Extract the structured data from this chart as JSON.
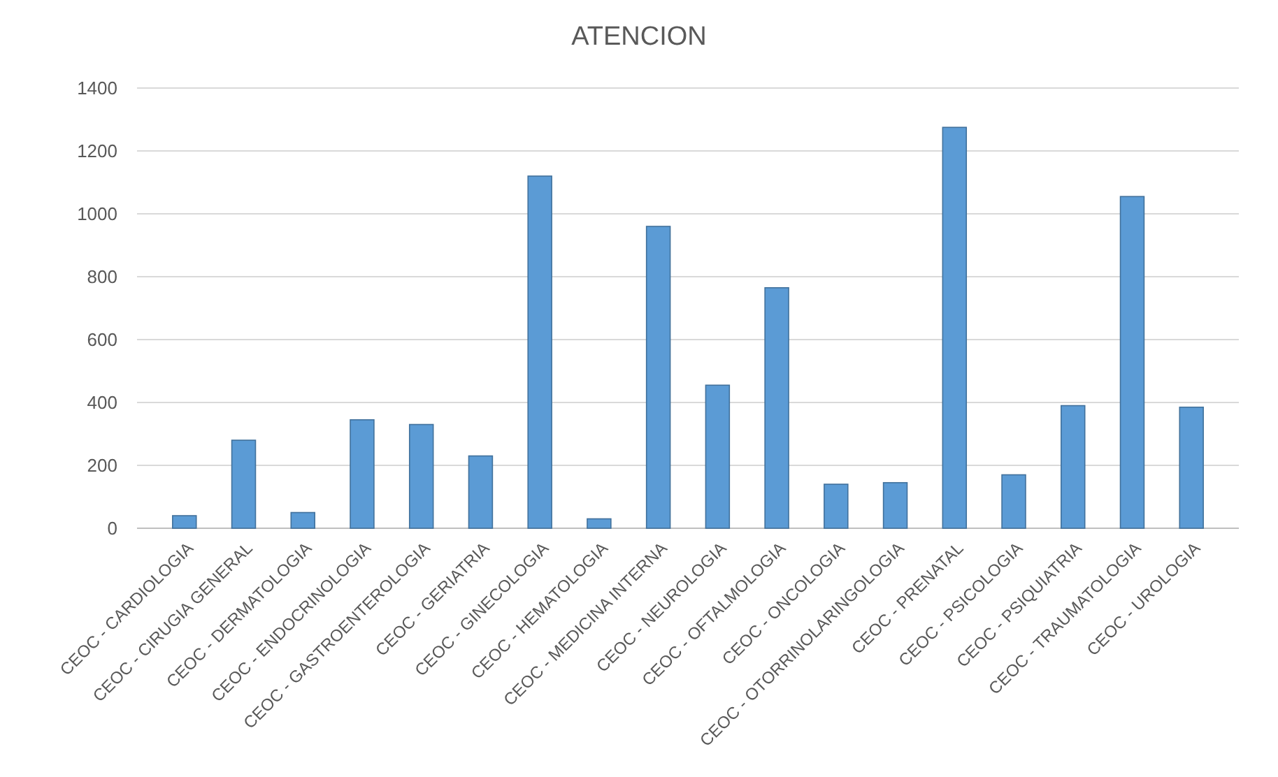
{
  "chart_data": {
    "type": "bar",
    "title": "ATENCION",
    "categories": [
      "CEOC - CARDIOLOGIA",
      "CEOC - CIRUGIA GENERAL",
      "CEOC - DERMATOLOGIA",
      "CEOC - ENDOCRINOLOGIA",
      "CEOC - GASTROENTEROLOGIA",
      "CEOC - GERIATRIA",
      "CEOC - GINECOLOGIA",
      "CEOC - HEMATOLOGIA",
      "CEOC - MEDICINA INTERNA",
      "CEOC - NEUROLOGIA",
      "CEOC - OFTALMOLOGIA",
      "CEOC - ONCOLOGIA",
      "CEOC - OTORRINOLARINGOLOGIA",
      "CEOC - PRENATAL",
      "CEOC - PSICOLOGIA",
      "CEOC - PSIQUIATRIA",
      "CEOC - TRAUMATOLOGIA",
      "CEOC - UROLOGIA"
    ],
    "values": [
      40,
      280,
      50,
      345,
      330,
      230,
      1120,
      30,
      960,
      455,
      765,
      140,
      145,
      1275,
      170,
      390,
      1055,
      385
    ],
    "color": "#5b9bd5",
    "ylim": [
      0,
      1400
    ],
    "yticks": [
      0,
      200,
      400,
      600,
      800,
      1000,
      1200,
      1400
    ],
    "grid": "y"
  }
}
